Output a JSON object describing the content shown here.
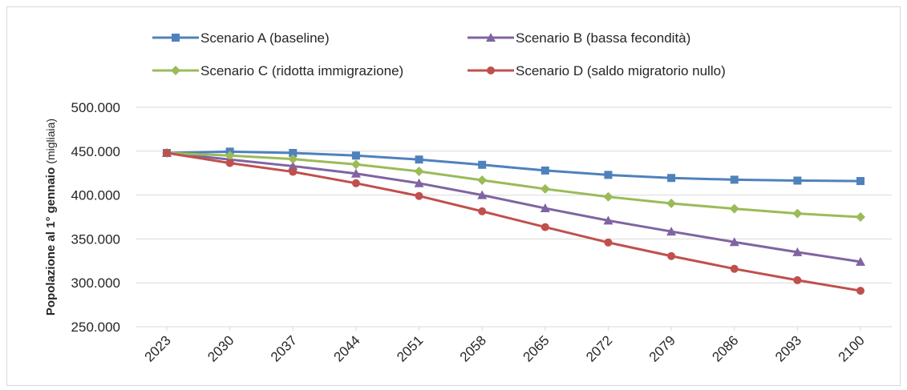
{
  "chart_data": {
    "type": "line",
    "ylabel": "Popolazione al 1° gennaio",
    "ylabel_unit": "(migliaia)",
    "categories": [
      "2023",
      "2030",
      "2037",
      "2044",
      "2051",
      "2058",
      "2065",
      "2072",
      "2079",
      "2086",
      "2093",
      "2100"
    ],
    "series": [
      {
        "name": "Scenario A (baseline)",
        "color": "#4f81bd",
        "marker": "square",
        "values": [
          448000,
          449500,
          448000,
          445000,
          440500,
          434500,
          428000,
          423000,
          419500,
          417500,
          416500,
          416000
        ]
      },
      {
        "name": "Scenario B (bassa fecondità)",
        "color": "#8064a2",
        "marker": "triangle",
        "values": [
          448000,
          440500,
          433000,
          424500,
          413500,
          400000,
          385000,
          371000,
          358500,
          346500,
          335000,
          324000
        ]
      },
      {
        "name": "Scenario C (ridotta immigrazione)",
        "color": "#9bbb59",
        "marker": "diamond",
        "values": [
          448000,
          445000,
          441000,
          435000,
          427000,
          417000,
          407000,
          398000,
          390500,
          384500,
          379000,
          375000
        ]
      },
      {
        "name": "Scenario D (saldo migratorio nullo)",
        "color": "#c0504d",
        "marker": "circle",
        "values": [
          448000,
          436500,
          426500,
          413500,
          399000,
          381500,
          363500,
          346000,
          330500,
          316000,
          303000,
          291000
        ]
      }
    ],
    "ylim": [
      250000,
      500000
    ],
    "yticks": [
      {
        "value": 250000,
        "label": "250.000"
      },
      {
        "value": 300000,
        "label": "300.000"
      },
      {
        "value": 350000,
        "label": "350.000"
      },
      {
        "value": 400000,
        "label": "400.000"
      },
      {
        "value": 450000,
        "label": "450.000"
      },
      {
        "value": 500000,
        "label": "500.000"
      }
    ],
    "grid": true
  }
}
